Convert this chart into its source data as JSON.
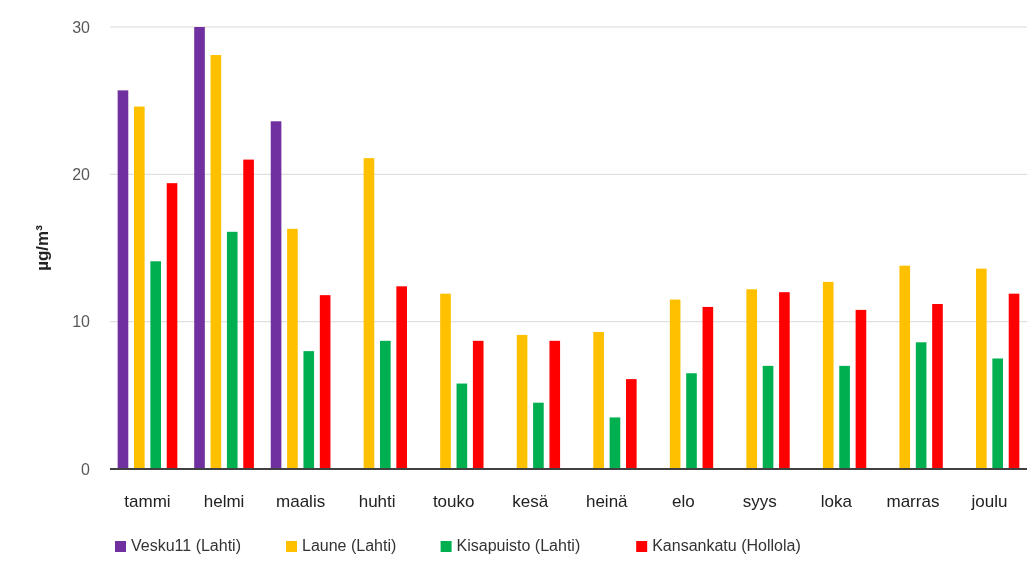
{
  "chart_data": {
    "type": "bar",
    "ylabel": "µg/m³",
    "categories": [
      "tammi",
      "helmi",
      "maalis",
      "huhti",
      "touko",
      "kesä",
      "heinä",
      "elo",
      "syys",
      "loka",
      "marras",
      "joulu"
    ],
    "series": [
      {
        "name": "Vesku11 (Lahti)",
        "color": "#7030a0",
        "values": [
          25.7,
          30,
          23.6,
          null,
          null,
          null,
          null,
          null,
          null,
          null,
          null,
          null
        ]
      },
      {
        "name": "Laune (Lahti)",
        "color": "#ffc000",
        "values": [
          24.6,
          28.1,
          16.3,
          21.1,
          11.9,
          9.1,
          9.3,
          11.5,
          12.2,
          12.7,
          13.8,
          13.6
        ]
      },
      {
        "name": "Kisapuisto (Lahti)",
        "color": "#00b050",
        "values": [
          14.1,
          16.1,
          8.0,
          8.7,
          5.8,
          4.5,
          3.5,
          6.5,
          7.0,
          7.0,
          8.6,
          7.5
        ]
      },
      {
        "name": "Kansankatu (Hollola)",
        "color": "#ff0000",
        "values": [
          19.4,
          21.0,
          11.8,
          12.4,
          8.7,
          8.7,
          6.1,
          11.0,
          12.0,
          10.8,
          11.2,
          11.9
        ]
      }
    ],
    "ylim": [
      0,
      30
    ],
    "yticks": [
      0,
      10,
      20,
      30
    ],
    "grid": "y",
    "legend": "bottom"
  }
}
